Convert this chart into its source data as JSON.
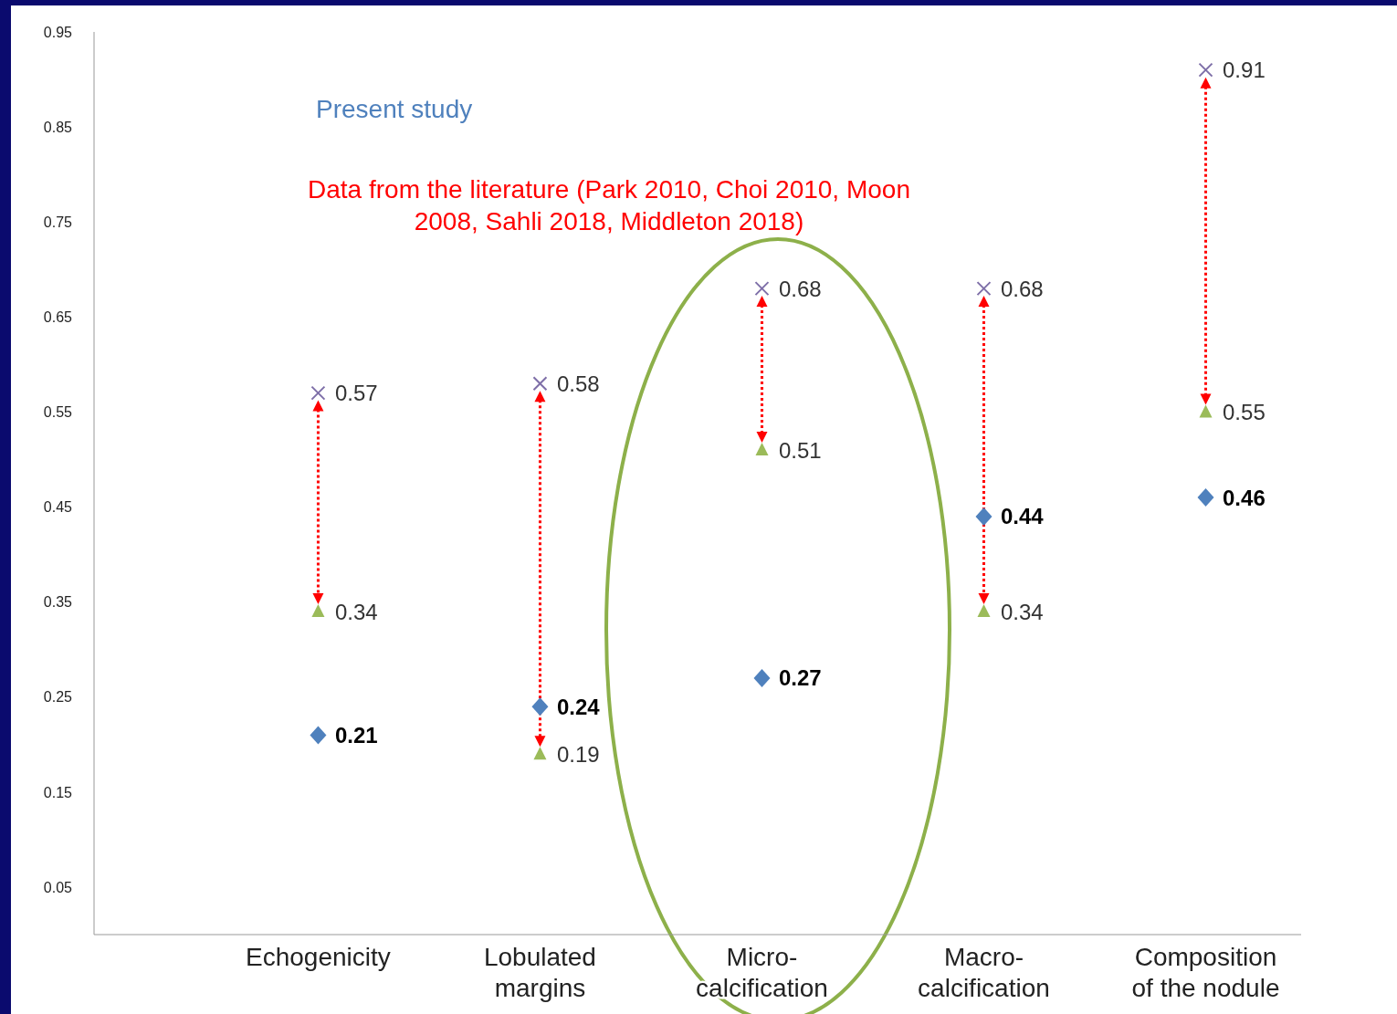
{
  "chart_data": {
    "type": "scatter",
    "categories": [
      "Echogenicity",
      "Lobulated margins",
      "Micro-calcification",
      "Macro-calcification",
      "Composition of the nodule"
    ],
    "series": [
      {
        "name": "Present study",
        "color": "#4f81bd",
        "marker": "diamond",
        "values": [
          0.21,
          0.24,
          0.27,
          0.44,
          0.46
        ]
      },
      {
        "color": "#7e6fa8",
        "marker": "cross",
        "values": [
          0.57,
          0.58,
          0.68,
          0.68,
          0.91
        ]
      },
      {
        "color": "#9bbb59",
        "marker": "triangle",
        "values": [
          0.34,
          0.19,
          0.51,
          0.34,
          0.55
        ]
      }
    ],
    "ylim": [
      0,
      0.95
    ],
    "yticks": [
      0.05,
      0.15,
      0.25,
      0.35,
      0.45,
      0.55,
      0.65,
      0.75,
      0.85,
      0.95
    ],
    "data_labels": true,
    "annotations": [
      "Data from the literature (Park 2010, Choi 2010, Moon 2008, Sahli 2018, Middleton 2018)"
    ]
  }
}
